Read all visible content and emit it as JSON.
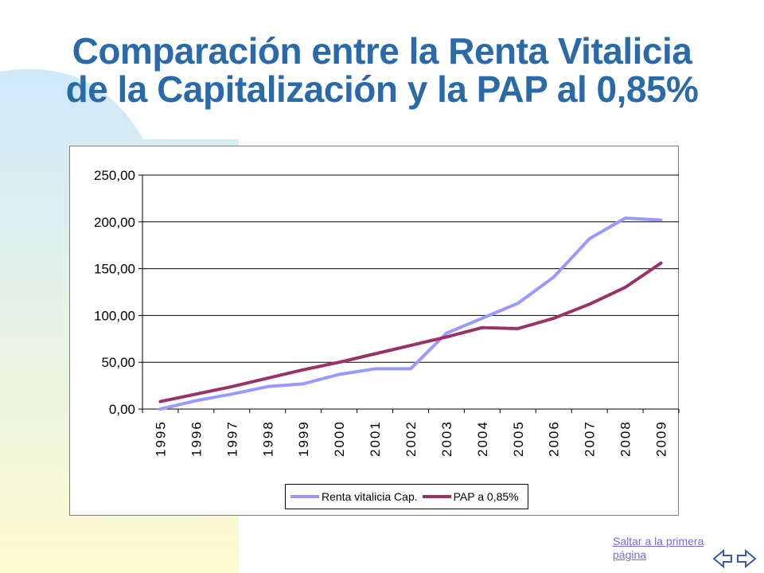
{
  "slide": {
    "title_line1": "Comparación entre la Renta Vitalicia",
    "title_line2": "de la Capitalización y la PAP al 0,85%",
    "link_text": "Saltar a la primera página",
    "nav_icons": [
      "back-arrow-icon",
      "forward-arrow-icon"
    ]
  },
  "colors": {
    "title": "#2a6aa8",
    "series1": "#9999ff",
    "series2": "#993366",
    "background_gradient_top": "#cfe9fb",
    "background_gradient_bottom": "#fdfbd0"
  },
  "chart_data": {
    "type": "line",
    "title": "",
    "xlabel": "",
    "ylabel": "",
    "ylim": [
      0,
      250
    ],
    "y_ticks": [
      "0,00",
      "50,00",
      "100,00",
      "150,00",
      "200,00",
      "250,00"
    ],
    "y_tick_values": [
      0,
      50,
      100,
      150,
      200,
      250
    ],
    "grid": true,
    "legend_position": "bottom",
    "categories": [
      "1995",
      "1996",
      "1997",
      "1998",
      "1999",
      "2000",
      "2001",
      "2002",
      "2003",
      "2004",
      "2005",
      "2006",
      "2007",
      "2008",
      "2009"
    ],
    "series": [
      {
        "name": "Renta vitalicia Cap.",
        "color": "#9999ff",
        "values": [
          0,
          9,
          16,
          24,
          27,
          37,
          43,
          43,
          81,
          97,
          113,
          141,
          182,
          204,
          202
        ]
      },
      {
        "name": "PAP a 0,85%",
        "color": "#993366",
        "values": [
          8,
          16,
          24,
          33,
          42,
          50,
          59,
          68,
          77,
          87,
          86,
          97,
          112,
          130,
          156
        ]
      }
    ]
  }
}
